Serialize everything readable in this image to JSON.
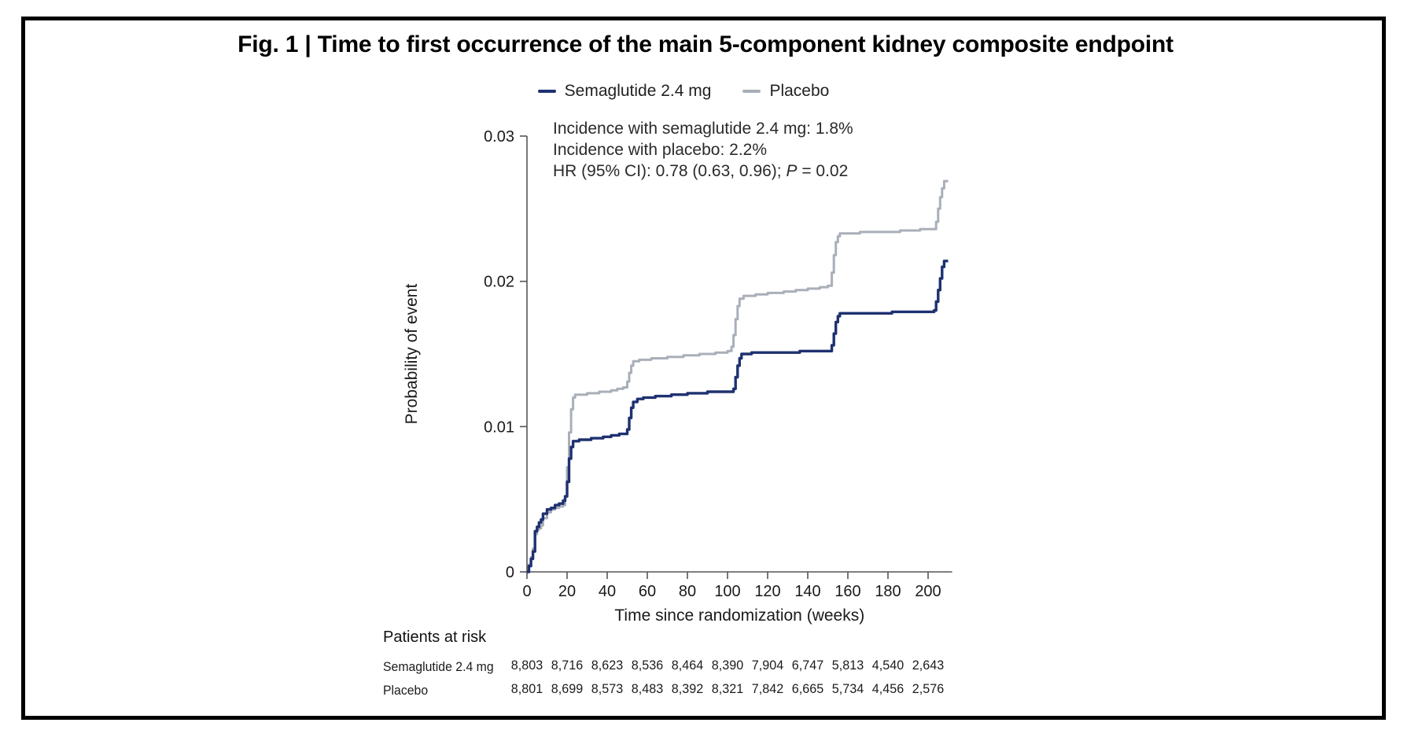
{
  "figure": {
    "title": "Fig. 1 | Time to first occurrence of the main 5-component kidney composite endpoint"
  },
  "legend": [
    {
      "label": "Semaglutide 2.4 mg",
      "color": "#1e3170"
    },
    {
      "label": "Placebo",
      "color": "#a9afb8"
    }
  ],
  "annotation": {
    "line1": "Incidence with semaglutide 2.4 mg: 1.8%",
    "line2": "Incidence with placebo: 2.2%",
    "hr_prefix": "HR (95% CI): 0.78 (0.63, 0.96); ",
    "p_label": "P",
    "p_value": " = 0.02"
  },
  "chart_data": {
    "type": "line",
    "step": "hv",
    "title": "",
    "xlabel": "Time since randomization (weeks)",
    "ylabel": "Probability of event",
    "xlim": [
      0,
      212
    ],
    "ylim": [
      0,
      0.03
    ],
    "x_ticks": [
      0,
      20,
      40,
      60,
      80,
      100,
      120,
      140,
      160,
      180,
      200
    ],
    "y_ticks": [
      0,
      0.01,
      0.02,
      0.03
    ],
    "y_tick_labels": [
      "0",
      "0.01",
      "0.02",
      "0.03"
    ],
    "grid": false,
    "legend_position": "top",
    "axis_color": "#555555",
    "series": [
      {
        "name": "Semaglutide 2.4 mg",
        "color": "#1e3170",
        "width": 3.4,
        "points": [
          [
            0,
            0
          ],
          [
            1,
            0.0004
          ],
          [
            2,
            0.0009
          ],
          [
            3,
            0.0014
          ],
          [
            4,
            0.0028
          ],
          [
            5,
            0.0031
          ],
          [
            6,
            0.0034
          ],
          [
            7,
            0.0036
          ],
          [
            8,
            0.004
          ],
          [
            10,
            0.0043
          ],
          [
            12,
            0.0044
          ],
          [
            14,
            0.0046
          ],
          [
            16,
            0.0047
          ],
          [
            18,
            0.0049
          ],
          [
            19,
            0.0052
          ],
          [
            20,
            0.0062
          ],
          [
            21,
            0.0078
          ],
          [
            22,
            0.0086
          ],
          [
            23,
            0.009
          ],
          [
            26,
            0.0091
          ],
          [
            32,
            0.0092
          ],
          [
            38,
            0.0093
          ],
          [
            42,
            0.0094
          ],
          [
            46,
            0.0095
          ],
          [
            50,
            0.0098
          ],
          [
            51,
            0.0106
          ],
          [
            52,
            0.0113
          ],
          [
            53,
            0.0117
          ],
          [
            55,
            0.0119
          ],
          [
            58,
            0.012
          ],
          [
            64,
            0.0121
          ],
          [
            72,
            0.0122
          ],
          [
            80,
            0.0123
          ],
          [
            90,
            0.0124
          ],
          [
            100,
            0.0124
          ],
          [
            103,
            0.0126
          ],
          [
            104,
            0.0134
          ],
          [
            105,
            0.0142
          ],
          [
            106,
            0.0147
          ],
          [
            107,
            0.015
          ],
          [
            112,
            0.0151
          ],
          [
            124,
            0.0151
          ],
          [
            136,
            0.0152
          ],
          [
            148,
            0.0152
          ],
          [
            152,
            0.0156
          ],
          [
            153,
            0.0164
          ],
          [
            154,
            0.0172
          ],
          [
            155,
            0.0176
          ],
          [
            156,
            0.0178
          ],
          [
            168,
            0.0178
          ],
          [
            182,
            0.0179
          ],
          [
            196,
            0.0179
          ],
          [
            203,
            0.018
          ],
          [
            204,
            0.0186
          ],
          [
            205,
            0.0194
          ],
          [
            206,
            0.0202
          ],
          [
            207,
            0.021
          ],
          [
            208,
            0.0214
          ],
          [
            210,
            0.0214
          ]
        ]
      },
      {
        "name": "Placebo",
        "color": "#a9afb8",
        "width": 3.0,
        "points": [
          [
            0,
            0
          ],
          [
            1,
            0.0005
          ],
          [
            2,
            0.001
          ],
          [
            3,
            0.0016
          ],
          [
            4,
            0.0026
          ],
          [
            5,
            0.0029
          ],
          [
            6,
            0.003
          ],
          [
            7,
            0.0032
          ],
          [
            8,
            0.0037
          ],
          [
            10,
            0.0041
          ],
          [
            12,
            0.0043
          ],
          [
            14,
            0.0044
          ],
          [
            16,
            0.0045
          ],
          [
            18,
            0.0046
          ],
          [
            19,
            0.0052
          ],
          [
            20,
            0.0072
          ],
          [
            21,
            0.0096
          ],
          [
            22,
            0.0112
          ],
          [
            23,
            0.012
          ],
          [
            24,
            0.0122
          ],
          [
            30,
            0.0123
          ],
          [
            36,
            0.0124
          ],
          [
            42,
            0.0125
          ],
          [
            45,
            0.0126
          ],
          [
            48,
            0.0127
          ],
          [
            50,
            0.0131
          ],
          [
            51,
            0.0137
          ],
          [
            52,
            0.0142
          ],
          [
            53,
            0.0145
          ],
          [
            56,
            0.0146
          ],
          [
            62,
            0.0147
          ],
          [
            70,
            0.0148
          ],
          [
            78,
            0.0149
          ],
          [
            86,
            0.015
          ],
          [
            94,
            0.0151
          ],
          [
            100,
            0.0152
          ],
          [
            102,
            0.0155
          ],
          [
            103,
            0.0163
          ],
          [
            104,
            0.0174
          ],
          [
            105,
            0.0183
          ],
          [
            106,
            0.0188
          ],
          [
            108,
            0.019
          ],
          [
            114,
            0.0191
          ],
          [
            120,
            0.0192
          ],
          [
            128,
            0.0193
          ],
          [
            134,
            0.0194
          ],
          [
            140,
            0.0195
          ],
          [
            146,
            0.0196
          ],
          [
            150,
            0.0197
          ],
          [
            152,
            0.0206
          ],
          [
            153,
            0.0218
          ],
          [
            154,
            0.0227
          ],
          [
            155,
            0.0231
          ],
          [
            156,
            0.0233
          ],
          [
            166,
            0.0234
          ],
          [
            178,
            0.0234
          ],
          [
            186,
            0.0235
          ],
          [
            196,
            0.0236
          ],
          [
            202,
            0.0236
          ],
          [
            204,
            0.0241
          ],
          [
            205,
            0.025
          ],
          [
            206,
            0.0258
          ],
          [
            207,
            0.0264
          ],
          [
            208,
            0.0269
          ],
          [
            210,
            0.0269
          ]
        ]
      }
    ]
  },
  "risk_table": {
    "title": "Patients at risk",
    "weeks": [
      0,
      20,
      40,
      60,
      80,
      100,
      120,
      140,
      160,
      180,
      200
    ],
    "rows": [
      {
        "label": "Semaglutide 2.4 mg",
        "counts": [
          "8,803",
          "8,716",
          "8,623",
          "8,536",
          "8,464",
          "8,390",
          "7,904",
          "6,747",
          "5,813",
          "4,540",
          "2,643"
        ]
      },
      {
        "label": "Placebo",
        "counts": [
          "8,801",
          "8,699",
          "8,573",
          "8,483",
          "8,392",
          "8,321",
          "7,842",
          "6,665",
          "5,734",
          "4,456",
          "2,576"
        ]
      }
    ]
  }
}
